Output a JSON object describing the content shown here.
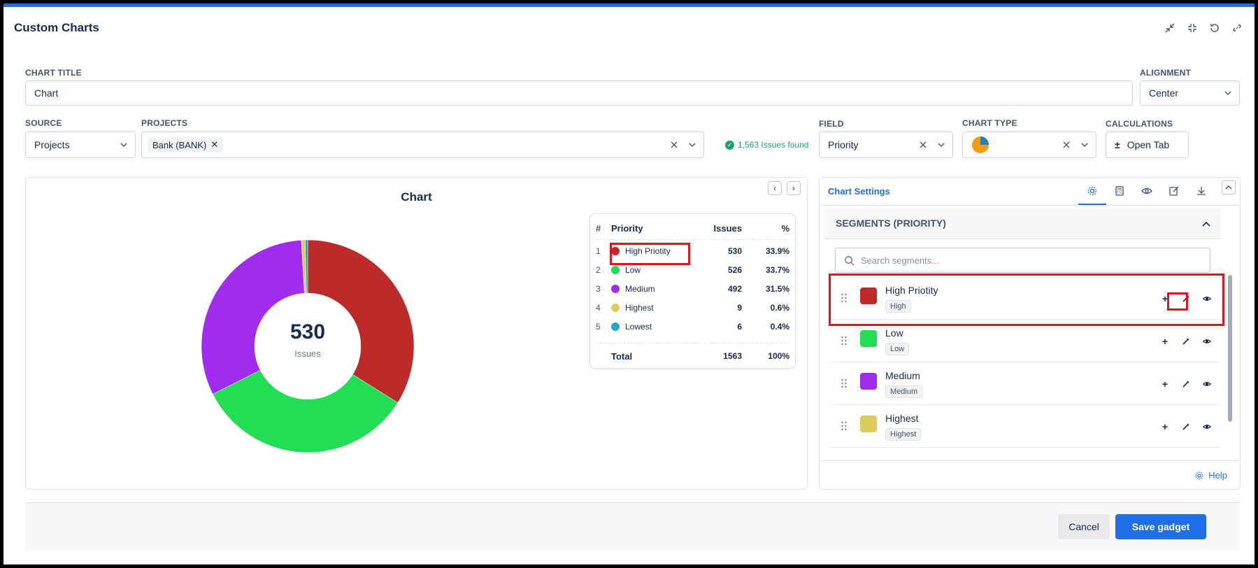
{
  "app": {
    "title": "Custom Charts"
  },
  "form": {
    "chart_title_label": "CHART TITLE",
    "chart_title_value": "Chart",
    "alignment_label": "ALIGNMENT",
    "alignment_value": "Center",
    "source_label": "SOURCE",
    "source_value": "Projects",
    "projects_label": "PROJECTS",
    "projects_tag": "Bank (BANK)",
    "issues_found": "1,563 Issues found",
    "field_label": "FIELD",
    "field_value": "Priority",
    "chart_type_label": "CHART TYPE",
    "calculations_label": "CALCULATIONS",
    "calculations_button": "Open Tab"
  },
  "chart_panel": {
    "title": "Chart",
    "center_value": "530",
    "center_label": "Issues"
  },
  "chart_data": {
    "type": "pie",
    "title": "Chart",
    "categories": [
      "High Priotity",
      "Low",
      "Medium",
      "Highest",
      "Lowest"
    ],
    "values": [
      530,
      526,
      492,
      9,
      6
    ],
    "colors": [
      "#bc2a2a",
      "#22de55",
      "#a22cee",
      "#dbcc5b",
      "#1fa8c9"
    ],
    "donut": true
  },
  "legend_table": {
    "headers": {
      "num": "#",
      "name": "Priority",
      "issues": "Issues",
      "pct": "%"
    },
    "rows": [
      {
        "num": "1",
        "name": "High Priotity",
        "issues": "530",
        "pct": "33.9%",
        "color": "#bc2a2a"
      },
      {
        "num": "2",
        "name": "Low",
        "issues": "526",
        "pct": "33.7%",
        "color": "#22de55"
      },
      {
        "num": "3",
        "name": "Medium",
        "issues": "492",
        "pct": "31.5%",
        "color": "#a22cee"
      },
      {
        "num": "4",
        "name": "Highest",
        "issues": "9",
        "pct": "0.6%",
        "color": "#dbcc5b"
      },
      {
        "num": "5",
        "name": "Lowest",
        "issues": "6",
        "pct": "0.4%",
        "color": "#1fa8c9"
      }
    ],
    "total": {
      "label": "Total",
      "issues": "1563",
      "pct": "100%"
    }
  },
  "settings": {
    "title": "Chart Settings",
    "segments_title": "SEGMENTS (PRIORITY)",
    "search_placeholder": "Search segments...",
    "segments": [
      {
        "name": "High Priotity",
        "tag": "High",
        "color": "#bc2a2a"
      },
      {
        "name": "Low",
        "tag": "Low",
        "color": "#22de55"
      },
      {
        "name": "Medium",
        "tag": "Medium",
        "color": "#a22cee"
      },
      {
        "name": "Highest",
        "tag": "Highest",
        "color": "#dbcc5b"
      }
    ],
    "help": "Help"
  },
  "footer": {
    "cancel": "Cancel",
    "save": "Save gadget"
  }
}
